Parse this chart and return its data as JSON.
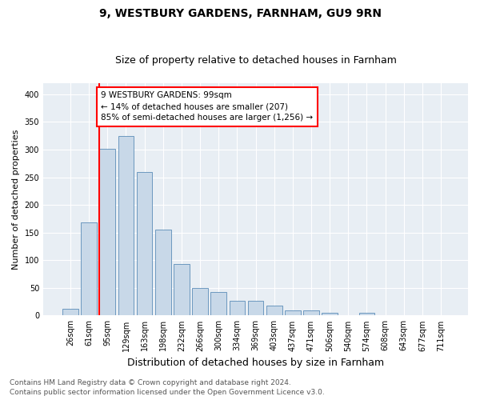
{
  "title1": "9, WESTBURY GARDENS, FARNHAM, GU9 9RN",
  "title2": "Size of property relative to detached houses in Farnham",
  "xlabel": "Distribution of detached houses by size in Farnham",
  "ylabel": "Number of detached properties",
  "categories": [
    "26sqm",
    "61sqm",
    "95sqm",
    "129sqm",
    "163sqm",
    "198sqm",
    "232sqm",
    "266sqm",
    "300sqm",
    "334sqm",
    "369sqm",
    "403sqm",
    "437sqm",
    "471sqm",
    "506sqm",
    "540sqm",
    "574sqm",
    "608sqm",
    "643sqm",
    "677sqm",
    "711sqm"
  ],
  "values": [
    12,
    168,
    302,
    325,
    260,
    155,
    93,
    50,
    42,
    26,
    26,
    18,
    10,
    10,
    5,
    1,
    5,
    1,
    1,
    1,
    1
  ],
  "bar_color": "#c8d8e8",
  "bar_edge_color": "#5b8db8",
  "red_line_bar_index": 2,
  "annotation_line1": "9 WESTBURY GARDENS: 99sqm",
  "annotation_line2": "← 14% of detached houses are smaller (207)",
  "annotation_line3": "85% of semi-detached houses are larger (1,256) →",
  "annotation_box_color": "white",
  "annotation_box_edge_color": "red",
  "ylim": [
    0,
    420
  ],
  "yticks": [
    0,
    50,
    100,
    150,
    200,
    250,
    300,
    350,
    400
  ],
  "background_color": "#e8eef4",
  "footer1": "Contains HM Land Registry data © Crown copyright and database right 2024.",
  "footer2": "Contains public sector information licensed under the Open Government Licence v3.0.",
  "title1_fontsize": 10,
  "title2_fontsize": 9,
  "xlabel_fontsize": 9,
  "ylabel_fontsize": 8,
  "tick_fontsize": 7,
  "annotation_fontsize": 7.5,
  "footer_fontsize": 6.5
}
